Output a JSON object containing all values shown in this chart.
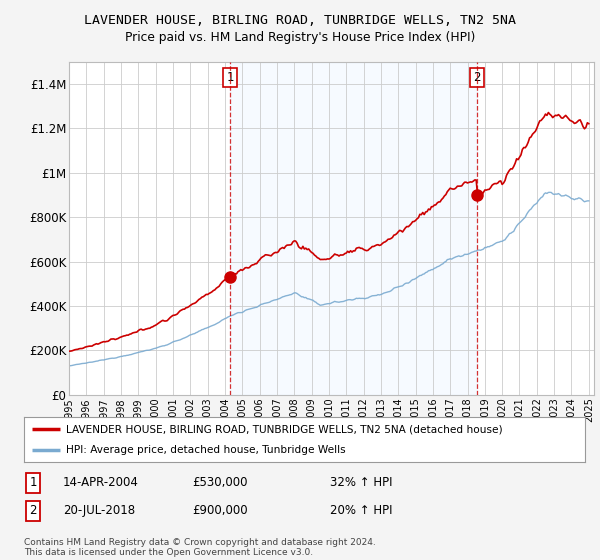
{
  "title": "LAVENDER HOUSE, BIRLING ROAD, TUNBRIDGE WELLS, TN2 5NA",
  "subtitle": "Price paid vs. HM Land Registry's House Price Index (HPI)",
  "legend_line1": "LAVENDER HOUSE, BIRLING ROAD, TUNBRIDGE WELLS, TN2 5NA (detached house)",
  "legend_line2": "HPI: Average price, detached house, Tunbridge Wells",
  "footnote": "Contains HM Land Registry data © Crown copyright and database right 2024.\nThis data is licensed under the Open Government Licence v3.0.",
  "transaction1_date": "14-APR-2004",
  "transaction1_price": "£530,000",
  "transaction1_hpi": "32% ↑ HPI",
  "transaction2_date": "20-JUL-2018",
  "transaction2_price": "£900,000",
  "transaction2_hpi": "20% ↑ HPI",
  "hpi_color": "#7aaad0",
  "house_color": "#cc0000",
  "marker_color": "#cc0000",
  "dashed_line_color": "#cc0000",
  "shaded_color": "#ddeeff",
  "ylim": [
    0,
    1500000
  ],
  "yticks": [
    0,
    200000,
    400000,
    600000,
    800000,
    1000000,
    1200000,
    1400000
  ],
  "ytick_labels": [
    "£0",
    "£200K",
    "£400K",
    "£600K",
    "£800K",
    "£1M",
    "£1.2M",
    "£1.4M"
  ],
  "background_color": "#f4f4f4",
  "plot_bg_color": "#ffffff",
  "grid_color": "#cccccc",
  "t1_year": 2004.29,
  "t2_year": 2018.54,
  "t1_price": 530000,
  "t2_price": 900000
}
